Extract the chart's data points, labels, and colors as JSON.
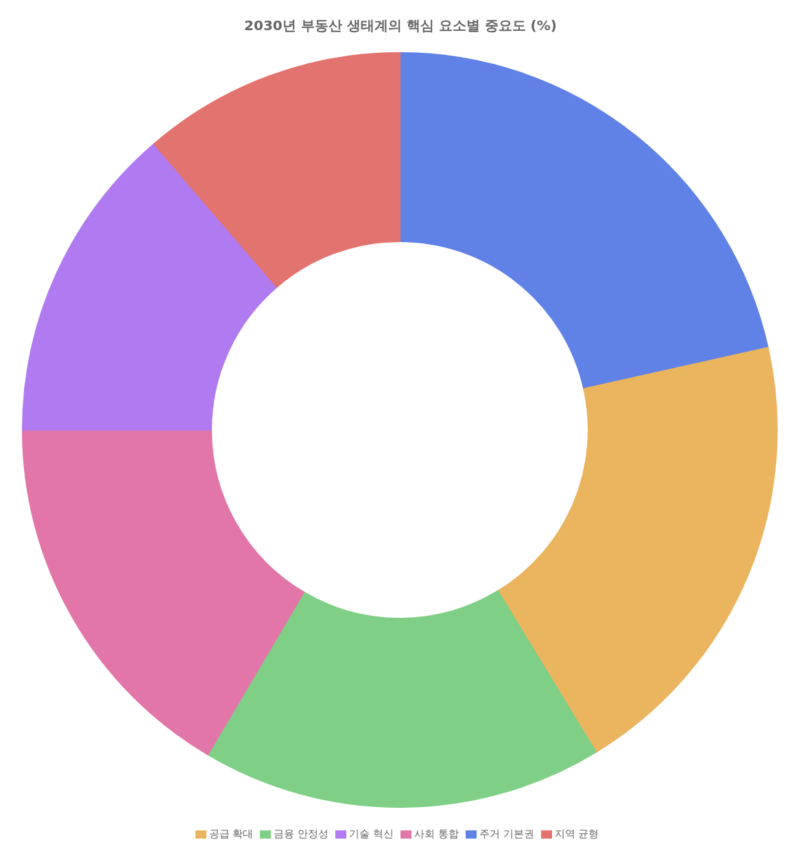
{
  "chart_data": {
    "type": "donut",
    "title": "2030년 부동산 생태계의 핵심 요소별 중요도 (%)",
    "categories": [
      "주거 기본권",
      "공급 확대",
      "금융 안정성",
      "사회 통합",
      "기술 혁신",
      "지역 균형"
    ],
    "values": [
      21.5,
      19.8,
      17.2,
      16.5,
      13.7,
      11.3
    ],
    "colors": [
      "#6082e6",
      "#ebb45f",
      "#7fcf86",
      "#e276a9",
      "#b07af0",
      "#e3736e"
    ],
    "legend": "bottom"
  }
}
